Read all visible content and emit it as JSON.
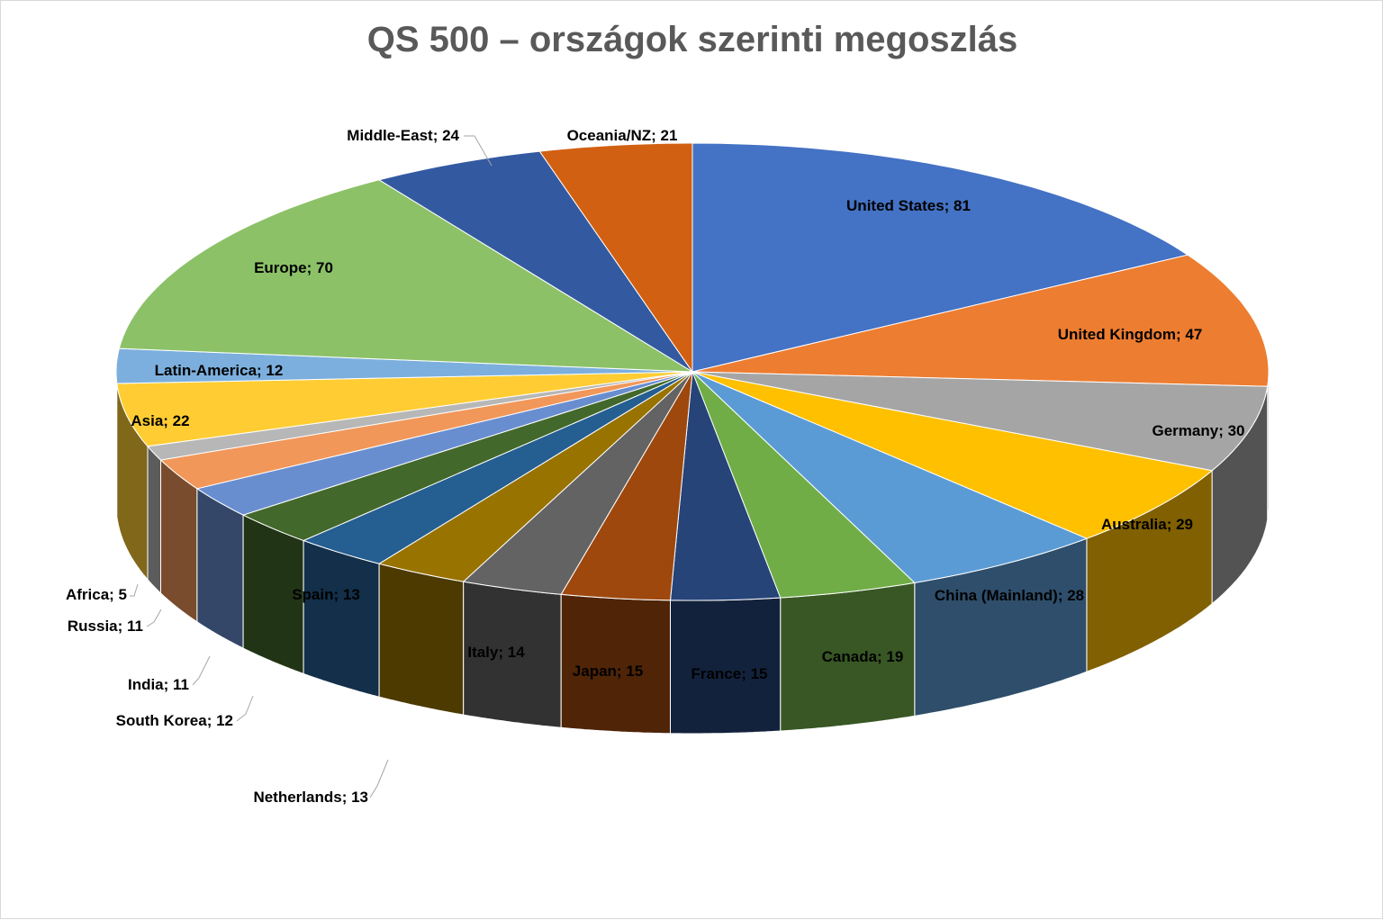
{
  "chart_data": {
    "type": "pie",
    "title": "QS 500 – országok szerinti megoszlás",
    "categories": [
      "United States",
      "United Kingdom",
      "Germany",
      "Australia",
      "China (Mainland)",
      "Canada",
      "France",
      "Japan",
      "Italy",
      "Netherlands",
      "Spain",
      "South Korea",
      "India",
      "Russia",
      "Africa",
      "Asia",
      "Latin-America",
      "Europe",
      "Middle-East",
      "Oceania/NZ"
    ],
    "values": [
      81,
      47,
      30,
      29,
      28,
      19,
      15,
      15,
      14,
      13,
      13,
      12,
      11,
      11,
      5,
      22,
      12,
      70,
      24,
      21
    ],
    "labels": [
      "United States; 81",
      "United Kingdom; 47",
      "Germany; 30",
      "Australia; 29",
      "China (Mainland); 28",
      "Canada; 19",
      "France; 15",
      "Japan; 15",
      "Italy; 14",
      "Netherlands; 13",
      "Spain; 13",
      "South Korea; 12",
      "India; 11",
      "Russia; 11",
      "Africa; 5",
      "Asia; 22",
      "Latin-America; 12",
      "Europe; 70",
      "Middle-East; 24",
      "Oceania/NZ; 21"
    ],
    "colors": [
      "#4472C4",
      "#ED7D31",
      "#A5A5A5",
      "#FFC000",
      "#5B9BD5",
      "#70AD47",
      "#264478",
      "#9E480E",
      "#636363",
      "#997300",
      "#255E91",
      "#43682B",
      "#698ED0",
      "#F1975A",
      "#B7B7B7",
      "#FFCD33",
      "#7CAFDD",
      "#8CC168",
      "#335AA1",
      "#D26012"
    ],
    "style": "3d-pie",
    "legend": "none"
  }
}
